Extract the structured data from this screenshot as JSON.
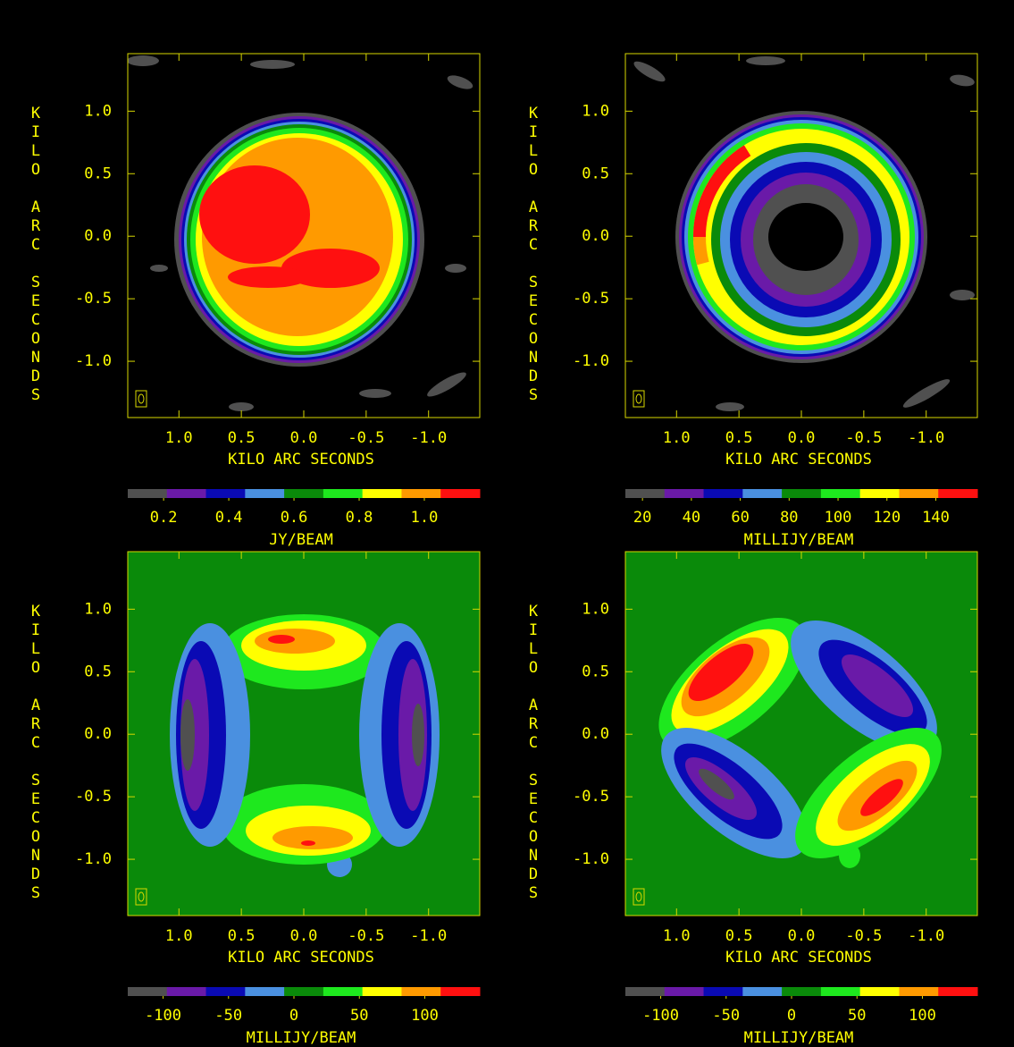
{
  "chart_data": [
    {
      "type": "contour-map",
      "xlabel": "KILO ARC SECONDS",
      "ylabel": "KILO ARC SECONDS",
      "xlim": [
        1.41,
        -1.41
      ],
      "ylim": [
        -1.45,
        1.46
      ],
      "xticks": [
        {
          "value": 1,
          "label": "1.0"
        },
        0.5,
        {
          "value": 0,
          "label": "0.0"
        },
        -0.5,
        {
          "value": -1,
          "label": "-1.0"
        }
      ],
      "yticks": [
        {
          "value": 1,
          "label": "1.0"
        },
        0.5,
        {
          "value": 0,
          "label": "0.0"
        },
        -0.5,
        {
          "value": -1,
          "label": "-1.0"
        }
      ],
      "colorbar": {
        "label": "JY/BEAM",
        "lim": [
          0.09,
          1.17
        ],
        "ticks": [
          0.2,
          0.4,
          0.6,
          0.8,
          {
            "value": 1,
            "label": "1.0"
          }
        ],
        "colors": [
          "#505050",
          "#6a1aa8",
          "#0a0ab4",
          "#4a90e0",
          "#0a8a0a",
          "#1ee81e",
          "#ffff00",
          "#ff9a00",
          "#ff1010"
        ]
      }
    },
    {
      "type": "contour-map",
      "xlabel": "KILO ARC SECONDS",
      "ylabel": "KILO ARC SECONDS",
      "xlim": [
        1.41,
        -1.41
      ],
      "ylim": [
        -1.45,
        1.46
      ],
      "xticks": [
        {
          "value": 1,
          "label": "1.0"
        },
        0.5,
        {
          "value": 0,
          "label": "0.0"
        },
        -0.5,
        {
          "value": -1,
          "label": "-1.0"
        }
      ],
      "yticks": [
        {
          "value": 1,
          "label": "1.0"
        },
        0.5,
        {
          "value": 0,
          "label": "0.0"
        },
        -0.5,
        {
          "value": -1,
          "label": "-1.0"
        }
      ],
      "colorbar": {
        "label": "MILLIJY/BEAM",
        "lim": [
          13,
          157
        ],
        "ticks": [
          20,
          40,
          60,
          80,
          100,
          120,
          140
        ],
        "colors": [
          "#505050",
          "#6a1aa8",
          "#0a0ab4",
          "#4a90e0",
          "#0a8a0a",
          "#1ee81e",
          "#ffff00",
          "#ff9a00",
          "#ff1010"
        ]
      }
    },
    {
      "type": "contour-map",
      "xlabel": "KILO ARC SECONDS",
      "ylabel": "KILO ARC SECONDS",
      "xlim": [
        1.41,
        -1.41
      ],
      "ylim": [
        -1.45,
        1.46
      ],
      "xticks": [
        {
          "value": 1,
          "label": "1.0"
        },
        0.5,
        {
          "value": 0,
          "label": "0.0"
        },
        -0.5,
        {
          "value": -1,
          "label": "-1.0"
        }
      ],
      "yticks": [
        {
          "value": 1,
          "label": "1.0"
        },
        0.5,
        {
          "value": 0,
          "label": "0.0"
        },
        -0.5,
        {
          "value": -1,
          "label": "-1.0"
        }
      ],
      "colorbar": {
        "label": "MILLIJY/BEAM",
        "lim": [
          -127,
          142
        ],
        "ticks": [
          -100,
          -50,
          0,
          50,
          100
        ],
        "colors": [
          "#505050",
          "#6a1aa8",
          "#0a0ab4",
          "#4a90e0",
          "#0a8a0a",
          "#1ee81e",
          "#ffff00",
          "#ff9a00",
          "#ff1010"
        ]
      }
    },
    {
      "type": "contour-map",
      "xlabel": "KILO ARC SECONDS",
      "ylabel": "KILO ARC SECONDS",
      "xlim": [
        1.41,
        -1.41
      ],
      "ylim": [
        -1.45,
        1.46
      ],
      "xticks": [
        {
          "value": 1,
          "label": "1.0"
        },
        0.5,
        {
          "value": 0,
          "label": "0.0"
        },
        -0.5,
        {
          "value": -1,
          "label": "-1.0"
        }
      ],
      "yticks": [
        {
          "value": 1,
          "label": "1.0"
        },
        0.5,
        {
          "value": 0,
          "label": "0.0"
        },
        -0.5,
        {
          "value": -1,
          "label": "-1.0"
        }
      ],
      "colorbar": {
        "label": "MILLIJY/BEAM",
        "lim": [
          -127,
          142
        ],
        "ticks": [
          -100,
          -50,
          0,
          50,
          100
        ],
        "colors": [
          "#505050",
          "#6a1aa8",
          "#0a0ab4",
          "#4a90e0",
          "#0a8a0a",
          "#1ee81e",
          "#ffff00",
          "#ff9a00",
          "#ff1010"
        ]
      }
    }
  ]
}
